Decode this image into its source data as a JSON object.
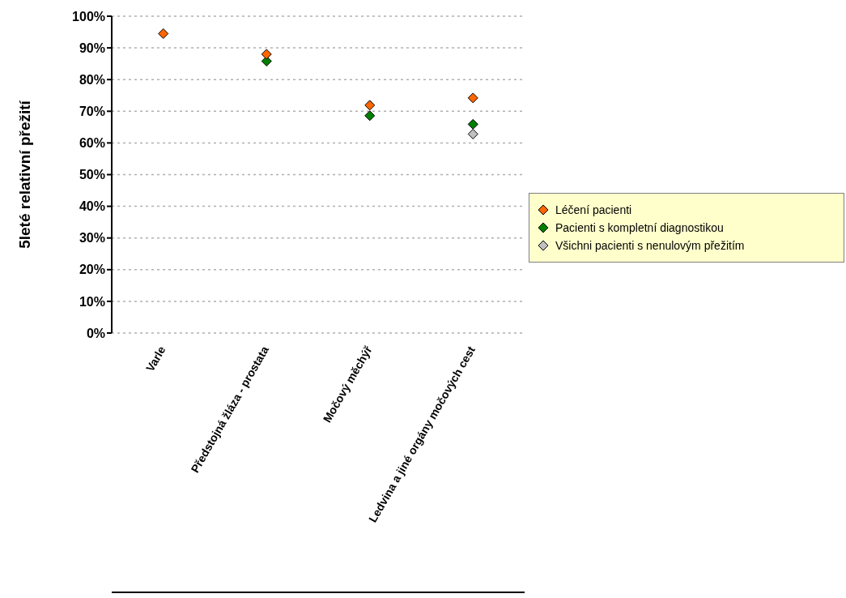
{
  "chart_data": {
    "type": "scatter",
    "ylabel": "5leté relativní přežití",
    "categories": [
      "Varle",
      "Předstojná žláza - prostata",
      "Močový měchýř",
      "Ledvina a jiné orgány močových cest"
    ],
    "series": [
      {
        "name": "Léčení pacienti",
        "color": "#ff6600",
        "values": [
          94.5,
          88.0,
          71.9,
          74.2
        ]
      },
      {
        "name": "Pacienti s kompletní diagnostikou",
        "color": "#008000",
        "values": [
          null,
          85.8,
          68.6,
          65.9
        ]
      },
      {
        "name": "Všichni pacienti s nenulovým přežitím",
        "color": "#c0c0c0",
        "values": [
          null,
          null,
          null,
          62.8
        ]
      }
    ],
    "ylim": [
      0,
      100
    ],
    "yticks": [
      {
        "value": 0,
        "label": "0%"
      },
      {
        "value": 10,
        "label": "10%"
      },
      {
        "value": 20,
        "label": "20%"
      },
      {
        "value": 30,
        "label": "30%"
      },
      {
        "value": 40,
        "label": "40%"
      },
      {
        "value": 50,
        "label": "50%"
      },
      {
        "value": 60,
        "label": "60%"
      },
      {
        "value": 70,
        "label": "70%"
      },
      {
        "value": 80,
        "label": "80%"
      },
      {
        "value": 90,
        "label": "90%"
      },
      {
        "value": 100,
        "label": "100%"
      }
    ],
    "grid": "y",
    "legend": "right",
    "marker": "diamond"
  }
}
